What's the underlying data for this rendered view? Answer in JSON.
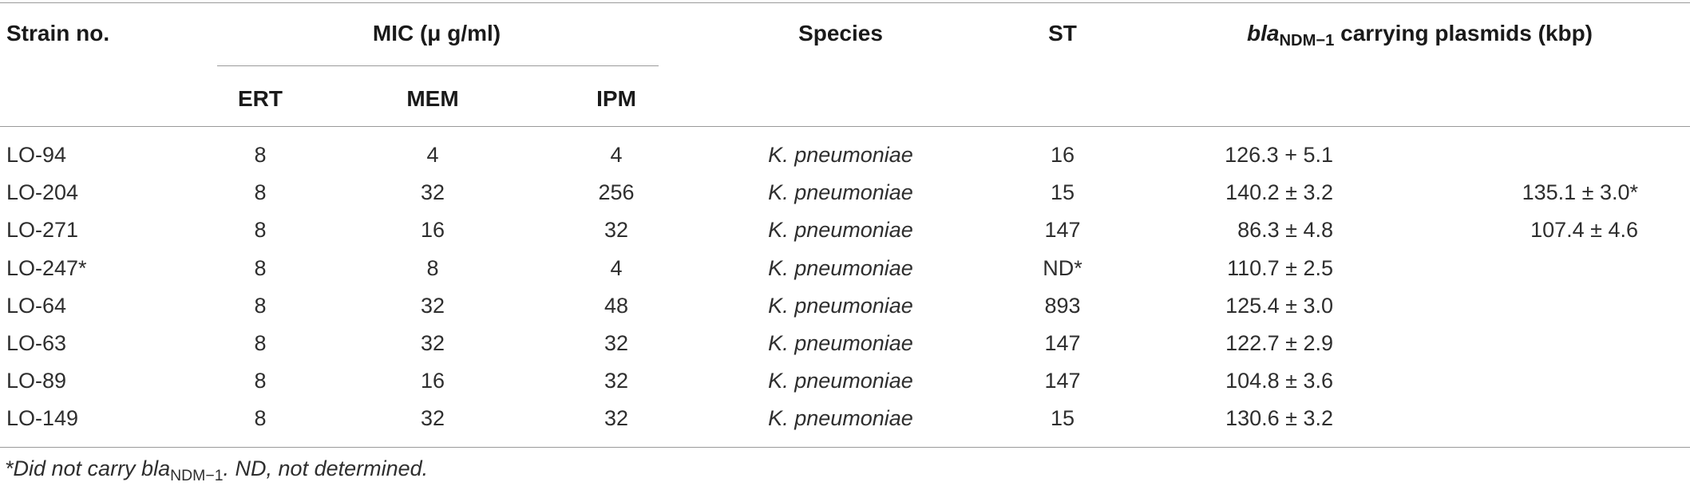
{
  "headers": {
    "strain": "Strain no.",
    "mic": "MIC (μ g/ml)",
    "ert": "ERT",
    "mem": "MEM",
    "ipm": "IPM",
    "species": "Species",
    "st": "ST",
    "bla_italic": "bla",
    "bla_sub": "NDM−1",
    "plasmids_rest": " carrying plasmids (kbp)"
  },
  "rows": [
    {
      "strain": "LO-94",
      "ert": "8",
      "mem": "4",
      "ipm": "4",
      "species": "K. pneumoniae",
      "st": "16",
      "plasmid1": "126.3 + 5.1",
      "plasmid2": ""
    },
    {
      "strain": "LO-204",
      "ert": "8",
      "mem": "32",
      "ipm": "256",
      "species": "K. pneumoniae",
      "st": "15",
      "plasmid1": "140.2 ± 3.2",
      "plasmid2": "135.1 ± 3.0*"
    },
    {
      "strain": "LO-271",
      "ert": "8",
      "mem": "16",
      "ipm": "32",
      "species": "K. pneumoniae",
      "st": "147",
      "plasmid1": "86.3 ± 4.8",
      "plasmid2": "107.4 ± 4.6"
    },
    {
      "strain": "LO-247*",
      "ert": "8",
      "mem": "8",
      "ipm": "4",
      "species": "K. pneumoniae",
      "st": "ND*",
      "plasmid1": "110.7 ± 2.5",
      "plasmid2": ""
    },
    {
      "strain": "LO-64",
      "ert": "8",
      "mem": "32",
      "ipm": "48",
      "species": "K. pneumoniae",
      "st": "893",
      "plasmid1": "125.4 ± 3.0",
      "plasmid2": ""
    },
    {
      "strain": "LO-63",
      "ert": "8",
      "mem": "32",
      "ipm": "32",
      "species": "K. pneumoniae",
      "st": "147",
      "plasmid1": "122.7 ± 2.9",
      "plasmid2": ""
    },
    {
      "strain": "LO-89",
      "ert": "8",
      "mem": "16",
      "ipm": "32",
      "species": "K. pneumoniae",
      "st": "147",
      "plasmid1": "104.8 ± 3.6",
      "plasmid2": ""
    },
    {
      "strain": "LO-149",
      "ert": "8",
      "mem": "32",
      "ipm": "32",
      "species": "K. pneumoniae",
      "st": "15",
      "plasmid1": "130.6 ± 3.2",
      "plasmid2": ""
    }
  ],
  "footnote": {
    "part1": "*Did not carry bla",
    "sub": "NDM−1",
    "part2": ". ND, not determined."
  }
}
